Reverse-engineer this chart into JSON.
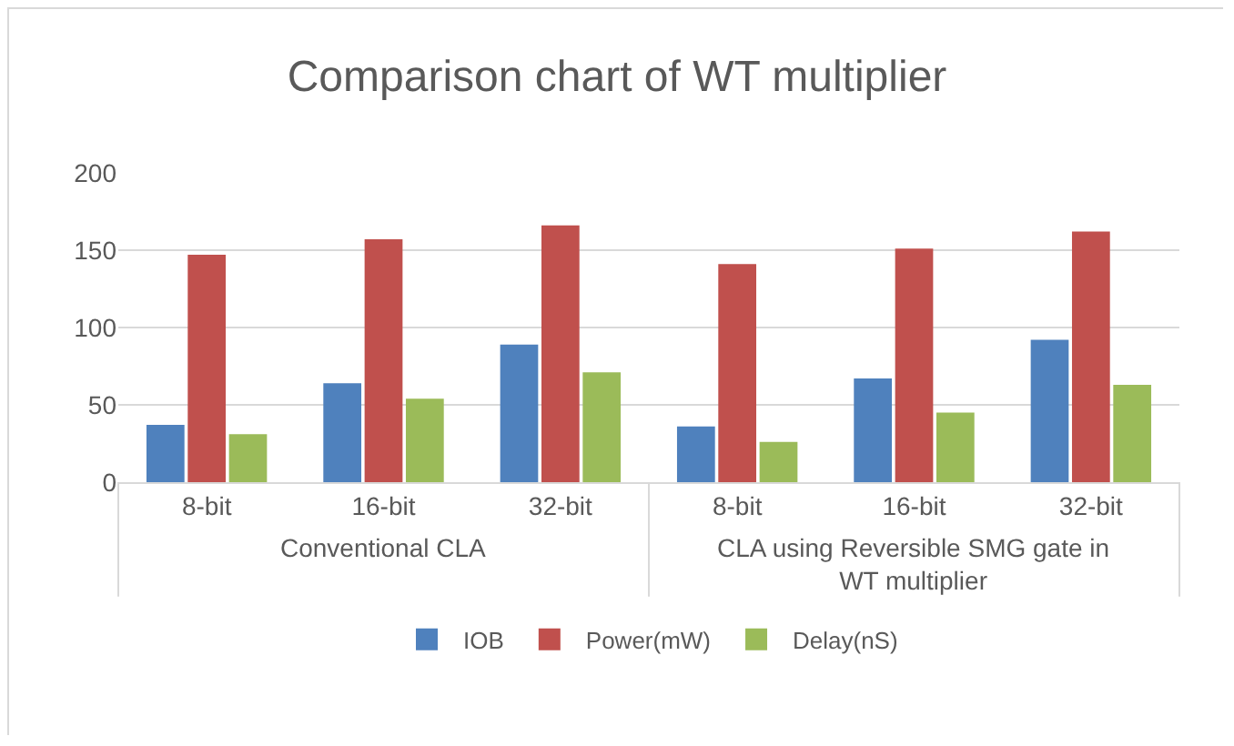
{
  "chart_data": {
    "type": "bar",
    "title": "Comparison chart of WT multiplier",
    "categories": [
      "8-bit",
      "16-bit",
      "32-bit",
      "8-bit",
      "16-bit",
      "32-bit"
    ],
    "series": [
      {
        "name": "IOB",
        "color": "#4f81bd",
        "values": [
          37,
          64,
          89,
          36,
          67,
          92
        ]
      },
      {
        "name": "Power(mW)",
        "color": "#c0504d",
        "values": [
          147,
          157,
          166,
          141,
          151,
          162
        ]
      },
      {
        "name": "Delay(nS)",
        "color": "#9bbb59",
        "values": [
          31,
          54,
          71,
          26,
          45,
          63
        ]
      }
    ],
    "ylim": [
      0,
      200
    ],
    "yticks": [
      0,
      50,
      100,
      150,
      200
    ],
    "grid": "y",
    "legend": "bottom",
    "annotations": [
      "Conventional CLA",
      "CLA using Reversible SMG gate in WT multiplier"
    ]
  }
}
